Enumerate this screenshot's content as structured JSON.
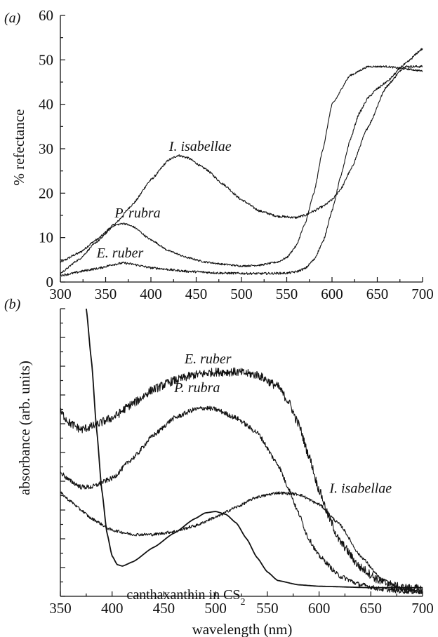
{
  "chart_data": [
    {
      "panel": "(a)",
      "type": "line",
      "xlabel": "",
      "ylabel": "% refectance",
      "xlim": [
        300,
        700
      ],
      "ylim": [
        0,
        60
      ],
      "x_ticks": [
        300,
        350,
        400,
        450,
        500,
        550,
        600,
        650,
        700
      ],
      "y_ticks": [
        0,
        10,
        20,
        30,
        40,
        50,
        60
      ],
      "series": [
        {
          "name": "I. isabellae",
          "noise": 0.25,
          "x": [
            300,
            320,
            340,
            360,
            380,
            400,
            420,
            430,
            440,
            460,
            480,
            500,
            520,
            540,
            560,
            570,
            580,
            590,
            600,
            610,
            620,
            640,
            660,
            680,
            700
          ],
          "y": [
            4.5,
            6.5,
            9.5,
            13,
            17.5,
            23,
            27.5,
            28.5,
            28,
            25.5,
            22,
            18.5,
            16,
            14.8,
            14.5,
            15,
            16,
            17,
            18.5,
            21,
            25,
            35,
            44,
            48.5,
            48.5
          ],
          "labels": [
            {
              "text": "I. isabellae",
              "x": 420,
              "y": 29.5
            }
          ]
        },
        {
          "name": "P. rubra",
          "noise": 0.2,
          "x": [
            300,
            320,
            340,
            360,
            370,
            380,
            400,
            420,
            440,
            460,
            480,
            500,
            520,
            540,
            550,
            560,
            570,
            580,
            590,
            600,
            620,
            640,
            660,
            680,
            700
          ],
          "y": [
            2,
            5,
            9,
            12.8,
            13.2,
            12.5,
            9.5,
            7,
            5.5,
            4.5,
            4,
            3.6,
            3.8,
            4.5,
            5.5,
            8,
            13,
            20,
            30,
            40,
            46.5,
            48.5,
            48.5,
            48,
            47.5
          ],
          "labels": [
            {
              "text": "P. rubra",
              "x": 360,
              "y": 14.5
            }
          ]
        },
        {
          "name": "E. ruber",
          "noise": 0.25,
          "x": [
            300,
            340,
            360,
            370,
            380,
            400,
            440,
            480,
            520,
            550,
            560,
            570,
            580,
            590,
            600,
            610,
            620,
            630,
            640,
            650,
            660,
            680,
            700
          ],
          "y": [
            1.5,
            3,
            4,
            4.3,
            4,
            3.2,
            2.4,
            2,
            1.9,
            2,
            2.3,
            3,
            5,
            9,
            16,
            24,
            32,
            38,
            41.5,
            43.5,
            45,
            49,
            52.5
          ],
          "labels": [
            {
              "text": "E. ruber",
              "x": 340,
              "y": 5.5
            }
          ]
        }
      ]
    },
    {
      "panel": "(b)",
      "type": "line",
      "xlabel": "wavelength (nm)",
      "ylabel": "absorbance (arb. units)",
      "xlim": [
        350,
        700
      ],
      "ylim": [
        0,
        100
      ],
      "x_ticks": [
        350,
        400,
        450,
        500,
        550,
        600,
        650,
        700
      ],
      "y_ticks": [
        0,
        5,
        10,
        15,
        20,
        25,
        30,
        35,
        40,
        45,
        50,
        55,
        60,
        65,
        70,
        75,
        80,
        85,
        90,
        95,
        100
      ],
      "series": [
        {
          "name": "E. ruber",
          "noise": 0.9,
          "x": [
            350,
            360,
            370,
            380,
            400,
            420,
            440,
            460,
            480,
            500,
            520,
            540,
            560,
            570,
            580,
            590,
            600,
            610,
            620,
            640,
            660,
            680,
            700
          ],
          "y": [
            64,
            60,
            58,
            59,
            62,
            67,
            72,
            75,
            77,
            78,
            78,
            77,
            73,
            68,
            60,
            49,
            37,
            27,
            19,
            10,
            5,
            3,
            2.5
          ],
          "labels": [
            {
              "text": "E. ruber",
              "x": 470,
              "y": 81
            }
          ]
        },
        {
          "name": "P. rubra",
          "noise": 0.5,
          "x": [
            350,
            360,
            370,
            380,
            400,
            420,
            440,
            460,
            480,
            490,
            500,
            520,
            540,
            560,
            570,
            580,
            590,
            600,
            620,
            640,
            660,
            680,
            700
          ],
          "y": [
            43,
            40,
            38,
            38,
            41,
            48,
            56,
            62,
            65,
            65.5,
            65,
            62,
            57,
            46,
            38,
            29,
            20,
            14,
            7,
            4,
            2.5,
            1.8,
            1.5
          ],
          "labels": [
            {
              "text": "P. rubra",
              "x": 460,
              "y": 71
            }
          ]
        },
        {
          "name": "I. isabellae",
          "noise": 0.3,
          "x": [
            350,
            360,
            370,
            380,
            400,
            420,
            440,
            460,
            480,
            500,
            520,
            540,
            560,
            580,
            600,
            620,
            640,
            660,
            680,
            700
          ],
          "y": [
            36,
            33,
            30,
            27,
            23,
            21.5,
            21.5,
            22.5,
            24.5,
            27.5,
            31,
            34.5,
            36,
            35.5,
            32,
            25,
            14,
            6,
            2.5,
            2
          ],
          "labels": [
            {
              "text": "I. isabellae",
              "x": 610,
              "y": 36
            }
          ]
        },
        {
          "name": "canthaxanthin in CS2",
          "noise": 0,
          "x": [
            375,
            380,
            385,
            390,
            395,
            400,
            405,
            410,
            420,
            440,
            460,
            480,
            490,
            500,
            510,
            520,
            530,
            540,
            550,
            560,
            580,
            600,
            650,
            700
          ],
          "y": [
            100,
            82,
            58,
            37,
            22,
            14,
            11,
            10.5,
            12,
            17,
            22,
            27,
            29,
            29.5,
            28.5,
            25.5,
            20,
            13.5,
            8.5,
            5.5,
            4,
            3.5,
            3,
            3
          ],
          "labels": [
            {
              "text": "canthaxanthin in CS",
              "subscript": "2",
              "x": 414,
              "y": -1
            }
          ]
        }
      ]
    }
  ]
}
